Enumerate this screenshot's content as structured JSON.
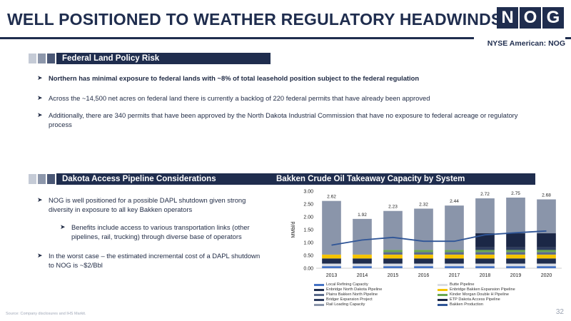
{
  "header": {
    "title": "WELL POSITIONED TO WEATHER REGULATORY HEADWINDS",
    "logo_letters": [
      "N",
      "O",
      "G"
    ],
    "exchange": "NYSE American: NOG"
  },
  "section1": {
    "label": "Federal Land Policy Risk",
    "bullets": [
      "Northern has minimal exposure to federal lands with ~8% of total leasehold position subject to the federal regulation",
      "Across the ~14,500 net acres on federal land there is currently a backlog of 220 federal permits that have already been approved",
      "Additionally, there are 340 permits that have been approved by the North Dakota Industrial Commission that have no exposure to federal acreage or regulatory process"
    ]
  },
  "section2": {
    "label": "Dakota Access Pipeline Considerations",
    "bullets": [
      "NOG is well positioned for a possible DAPL shutdown given strong diversity in exposure to all key Bakken operators",
      "Benefits include access to various transportation links (other pipelines, rail, trucking) through diverse base of operators",
      "In the worst case – the estimated incremental cost of a DAPL shutdown to NOG is ~$2/Bbl"
    ]
  },
  "chart_section": {
    "label": "Bakken Crude Oil Takeaway Capacity by System"
  },
  "chart_data": {
    "type": "bar",
    "stacked": true,
    "title": "Bakken Crude Oil Takeaway Capacity by System",
    "ylabel": "MMbl/d",
    "ylim": [
      0,
      3.0
    ],
    "yticks": [
      "0.00",
      "0.50",
      "1.00",
      "1.50",
      "2.00",
      "2.50",
      "3.00"
    ],
    "categories": [
      "2013",
      "2014",
      "2015",
      "2016",
      "2017",
      "2018",
      "2019",
      "2020"
    ],
    "totals": [
      "2.62",
      "1.92",
      "2.23",
      "2.32",
      "2.44",
      "2.72",
      "2.75",
      "2.68"
    ],
    "series": [
      {
        "name": "Local Refining Capacity",
        "color": "#4472c4",
        "values": [
          0.08,
          0.08,
          0.08,
          0.08,
          0.08,
          0.08,
          0.08,
          0.08
        ]
      },
      {
        "name": "Butte Pipeline",
        "color": "#d9dde4",
        "values": [
          0.1,
          0.1,
          0.1,
          0.1,
          0.1,
          0.1,
          0.1,
          0.1
        ]
      },
      {
        "name": "Enbridge North Dakota Pipeline",
        "color": "#1f2d4e",
        "values": [
          0.2,
          0.2,
          0.2,
          0.2,
          0.2,
          0.2,
          0.2,
          0.2
        ]
      },
      {
        "name": "Enbridge Bakken Expansion Pipeline",
        "color": "#f5c400",
        "values": [
          0.15,
          0.15,
          0.15,
          0.15,
          0.15,
          0.15,
          0.15,
          0.15
        ]
      },
      {
        "name": "Plains Bakken North Pipeline",
        "color": "#5a6a8a",
        "values": [
          0.0,
          0.0,
          0.1,
          0.1,
          0.1,
          0.1,
          0.1,
          0.1
        ]
      },
      {
        "name": "Kinder Morgan Double H Pipeline",
        "color": "#6aa84f",
        "values": [
          0.0,
          0.0,
          0.08,
          0.08,
          0.08,
          0.08,
          0.08,
          0.08
        ]
      },
      {
        "name": "Bridger Expansion Project",
        "color": "#2d3b5e",
        "values": [
          0.0,
          0.0,
          0.0,
          0.0,
          0.0,
          0.1,
          0.1,
          0.1
        ]
      },
      {
        "name": "ETP Dakota Access Pipeline",
        "color": "#1b2746",
        "values": [
          0.0,
          0.0,
          0.0,
          0.0,
          0.0,
          0.55,
          0.55,
          0.55
        ]
      },
      {
        "name": "Rail Loading Capacity",
        "color": "#8a95aa",
        "values": [
          2.09,
          1.39,
          1.52,
          1.61,
          1.73,
          1.36,
          1.39,
          1.32
        ]
      }
    ],
    "line": {
      "name": "Bakken Production",
      "color": "#2f5597",
      "values": [
        0.9,
        1.1,
        1.2,
        1.05,
        1.05,
        1.3,
        1.38,
        1.45
      ]
    }
  },
  "footer": {
    "source": "Source: Company disclosures and IHS Markit.",
    "page_number": "32"
  }
}
